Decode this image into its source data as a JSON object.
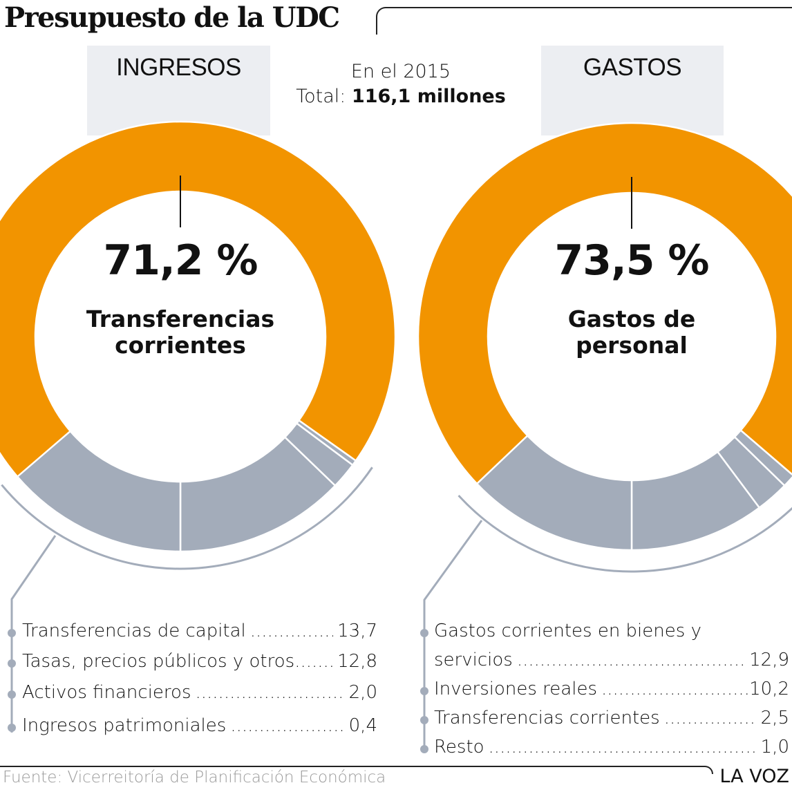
{
  "header": {
    "title": "Presupuesto de la UDC",
    "year_line": "En el 2015",
    "total_prefix": "Total: ",
    "total_value": "116,1 millones"
  },
  "colors": {
    "main_slice": "#f29400",
    "other_slices": "#a3acba",
    "tab_background": "#eceef2",
    "connector": "#a3acba"
  },
  "chart_data": [
    {
      "type": "pie",
      "donut": true,
      "title": "INGRESOS",
      "unit": "%",
      "highlight": {
        "label": "Transferencias corrientes",
        "label_lines": [
          "Transferencias",
          "corrientes"
        ],
        "value": 71.2,
        "value_text": "71,2 %"
      },
      "slices": [
        {
          "label": "Transferencias corrientes",
          "value": 71.2
        },
        {
          "label": "Ingresos patrimoniales",
          "value": 0.4
        },
        {
          "label": "Activos financieros",
          "value": 2.0
        },
        {
          "label": "Tasas, precios públicos y otros",
          "value": 12.8
        },
        {
          "label": "Transferencias de capital",
          "value": 13.7
        }
      ],
      "legend": [
        {
          "label": "Transferencias de capital",
          "value_text": "13,7"
        },
        {
          "label": "Tasas, precios públicos y otros",
          "value_text": "12,8"
        },
        {
          "label": "Activos financieros",
          "value_text": "2,0"
        },
        {
          "label": "Ingresos patrimoniales",
          "value_text": "0,4"
        }
      ]
    },
    {
      "type": "pie",
      "donut": true,
      "title": "GASTOS",
      "unit": "%",
      "highlight": {
        "label": "Gastos de personal",
        "label_lines": [
          "Gastos de",
          "personal"
        ],
        "value": 73.5,
        "value_text": "73,5 %"
      },
      "slices": [
        {
          "label": "Gastos de personal",
          "value": 73.5
        },
        {
          "label": "Resto",
          "value": 1.0
        },
        {
          "label": "Transferencias corrientes",
          "value": 2.5
        },
        {
          "label": "Inversiones reales",
          "value": 10.2
        },
        {
          "label": "Gastos corrientes en bienes y servicios",
          "value": 12.9
        }
      ],
      "legend": [
        {
          "label_lines": [
            "Gastos corrientes en bienes y",
            "servicios"
          ],
          "value_text": "12,9"
        },
        {
          "label": "Inversiones reales",
          "value_text": "10,2"
        },
        {
          "label": "Transferencias corrientes",
          "value_text": "2,5"
        },
        {
          "label": "Resto",
          "value_text": "1,0"
        }
      ]
    }
  ],
  "footer": {
    "source": "Fuente: Vicerreitoría de Planificación  Económica",
    "brand": "LA VOZ"
  }
}
